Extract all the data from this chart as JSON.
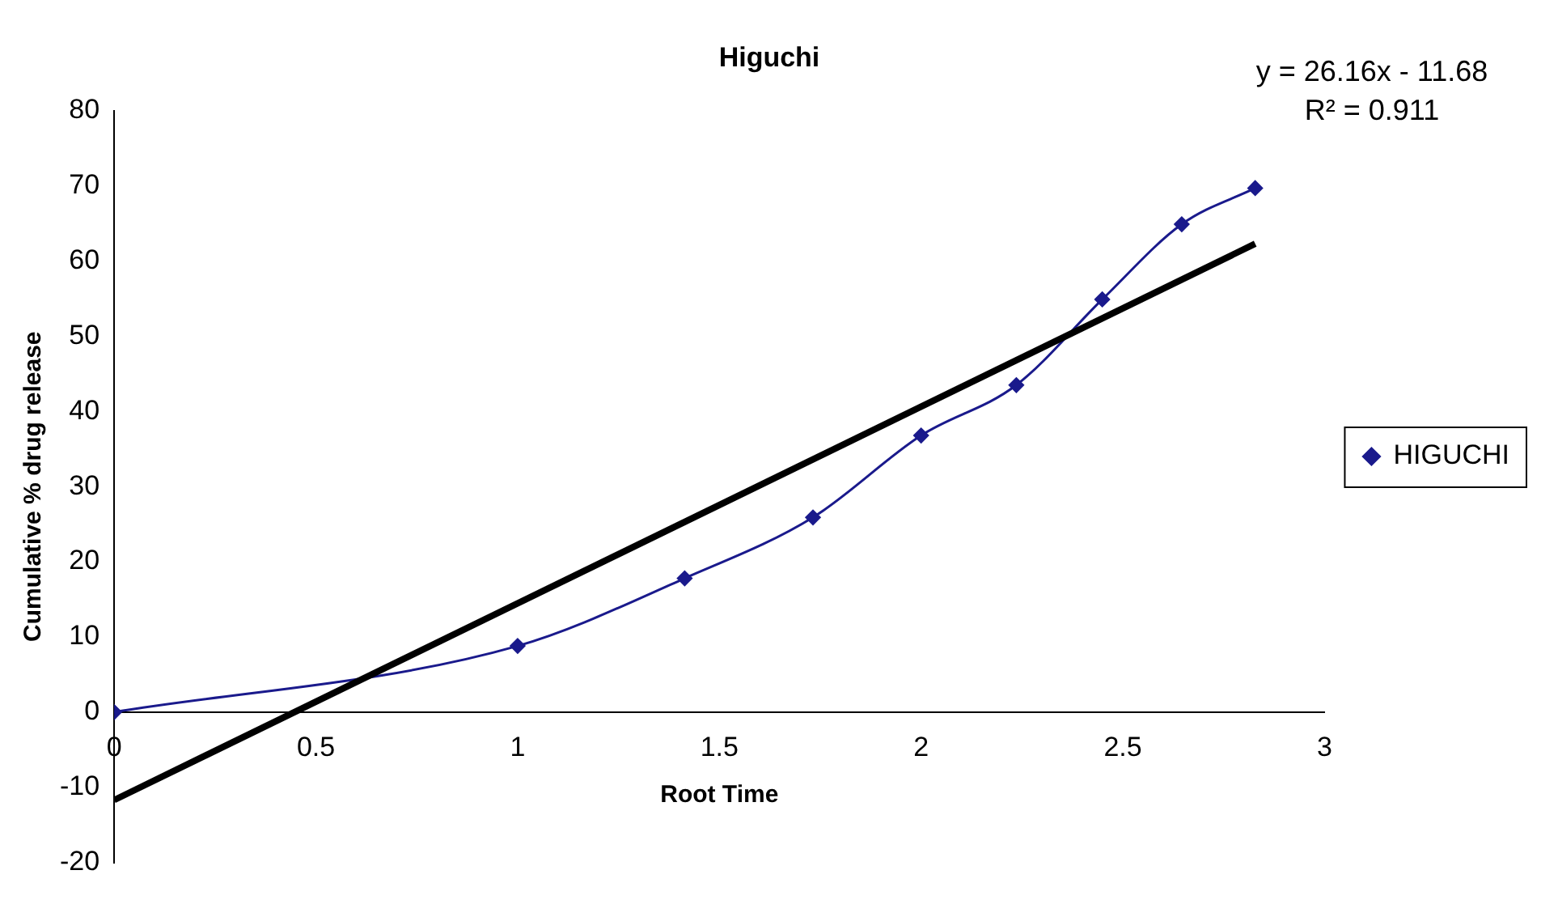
{
  "chart_data": {
    "type": "line",
    "title": "Higuchi",
    "xlabel": "Root Time",
    "ylabel": "Cumulative % drug release",
    "annotations": [
      "y = 26.16x - 11.68",
      "R² = 0.911"
    ],
    "xlim": [
      0,
      3
    ],
    "xticks": [
      0,
      0.5,
      1,
      1.5,
      2,
      2.5,
      3
    ],
    "ylim": [
      -20,
      80
    ],
    "yticks": [
      -20,
      -10,
      0,
      10,
      20,
      30,
      40,
      50,
      60,
      70,
      80
    ],
    "grid": false,
    "legend": "right",
    "series": [
      {
        "name": "HIGUCHI",
        "type": "line",
        "color": "#1a1a8c",
        "marker": "diamond",
        "line_style": "solid",
        "x": [
          0,
          1,
          1.414,
          1.732,
          2,
          2.236,
          2.449,
          2.646,
          2.828
        ],
        "values": [
          0,
          8.8,
          17.8,
          25.9,
          36.8,
          43.5,
          54.9,
          64.9,
          69.7
        ]
      },
      {
        "type": "line",
        "color": "#000000",
        "marker": "none",
        "line_style": "solid",
        "x": [
          0,
          2.828
        ],
        "values": [
          -11.7,
          62.3
        ]
      }
    ]
  }
}
